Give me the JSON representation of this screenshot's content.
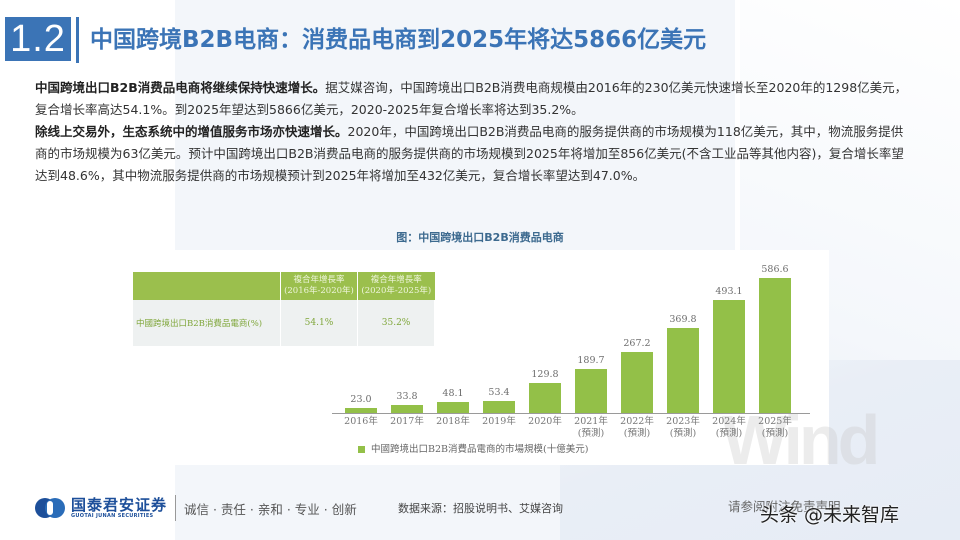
{
  "header": {
    "section_number": "1.2",
    "title": "中国跨境B2B电商：消费品电商到2025年将达5866亿美元"
  },
  "body": {
    "paragraphs": [
      {
        "bold": "中国跨境出口B2B消费品电商将继续保持快速增长。",
        "text": "据艾媒咨询，中国跨境出口B2B消费电商规模由2016年的230亿美元快速增长至2020年的1298亿美元，复合增长率高达54.1%。到2025年望达到5866亿美元，2020-2025年复合增长率将达到35.2%。"
      },
      {
        "bold": "除线上交易外，生态系统中的增值服务市场亦快速增长。",
        "text": "2020年，中国跨境出口B2B消费品电商的服务提供商的市场规模为118亿美元，其中，物流服务提供商的市场规模为63亿美元。预计中国跨境出口B2B消费品电商的服务提供商的市场规模到2025年将增加至856亿美元(不含工业品等其他内容)，复合增长率望达到48.6%，其中物流服务提供商的市场规模预计到2025年将增加至432亿美元，复合增长率望达到47.0%。"
      }
    ]
  },
  "figure": {
    "caption": "图：中国跨境出口B2B消费品电商",
    "table": {
      "headers": [
        "",
        "複合年增長率\n(2016年-2020年)",
        "複合年增長率\n(2020年-2025年)"
      ],
      "rows": [
        {
          "label": "中國跨境出口B2B消費品電商(%)",
          "values": [
            "54.1%",
            "35.2%"
          ]
        }
      ]
    },
    "watermark": "Wind"
  },
  "chart_data": {
    "type": "bar",
    "title": "中国跨境出口B2B消费品电商",
    "categories": [
      "2016年",
      "2017年",
      "2018年",
      "2019年",
      "2020年",
      "2021年\n(預測)",
      "2022年\n(預測)",
      "2023年\n(預測)",
      "2024年\n(預測)",
      "2025年\n(預測)"
    ],
    "series": [
      {
        "name": "中國跨境出口B2B消費品電商的市場規模(十億美元)",
        "values": [
          23.0,
          33.8,
          48.1,
          53.4,
          129.8,
          189.7,
          267.2,
          369.8,
          493.1,
          586.6
        ],
        "color": "#93c048"
      }
    ],
    "value_labels": [
      "23.0",
      "33.8",
      "48.1",
      "53.4",
      "129.8",
      "189.7",
      "267.2",
      "369.8",
      "493.1",
      "586.6"
    ],
    "xlabel": "",
    "ylabel": "",
    "ylim": [
      0,
      600
    ],
    "grid": false,
    "legend_position": "bottom"
  },
  "footer": {
    "logo_cn": "国泰君安证券",
    "logo_en": "GUOTAI JUNAN SECURITIES",
    "motto": "诚信 · 责任 · 亲和 · 专业 · 创新",
    "source": "数据来源：招股说明书、艾媒咨询",
    "disclaimer": "请参阅附注免责声明",
    "watermark": "头条 @未来智库"
  },
  "colors": {
    "brand_blue": "#3b74b6",
    "bar_green": "#93c048",
    "table_header_green": "#9bbf4d"
  }
}
